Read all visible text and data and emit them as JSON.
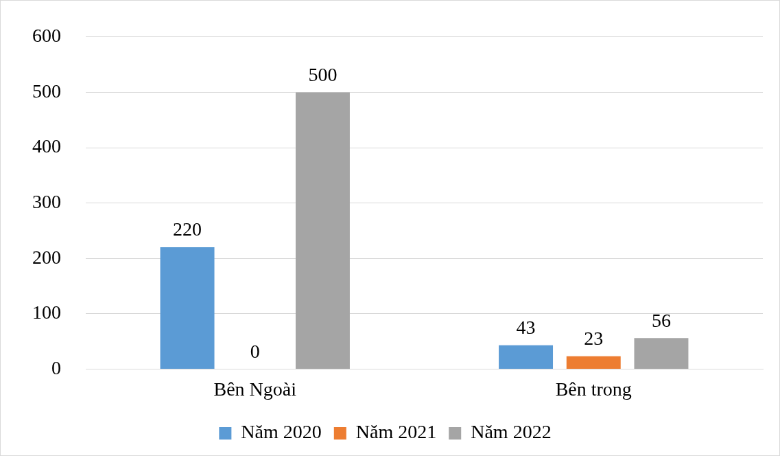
{
  "chart_data": {
    "type": "bar",
    "categories": [
      "Bên Ngoài",
      "Bên trong"
    ],
    "series": [
      {
        "name": "Năm 2020",
        "color": "#5b9bd5",
        "values": [
          220,
          43
        ]
      },
      {
        "name": "Năm 2021",
        "color": "#ed7d31",
        "values": [
          0,
          23
        ]
      },
      {
        "name": "Năm 2022",
        "color": "#a5a5a5",
        "values": [
          500,
          56
        ]
      }
    ],
    "ylim": [
      0,
      600
    ],
    "yticks": [
      0,
      100,
      200,
      300,
      400,
      500,
      600
    ],
    "grid": "y",
    "legend": "bottom",
    "data_labels": true
  }
}
